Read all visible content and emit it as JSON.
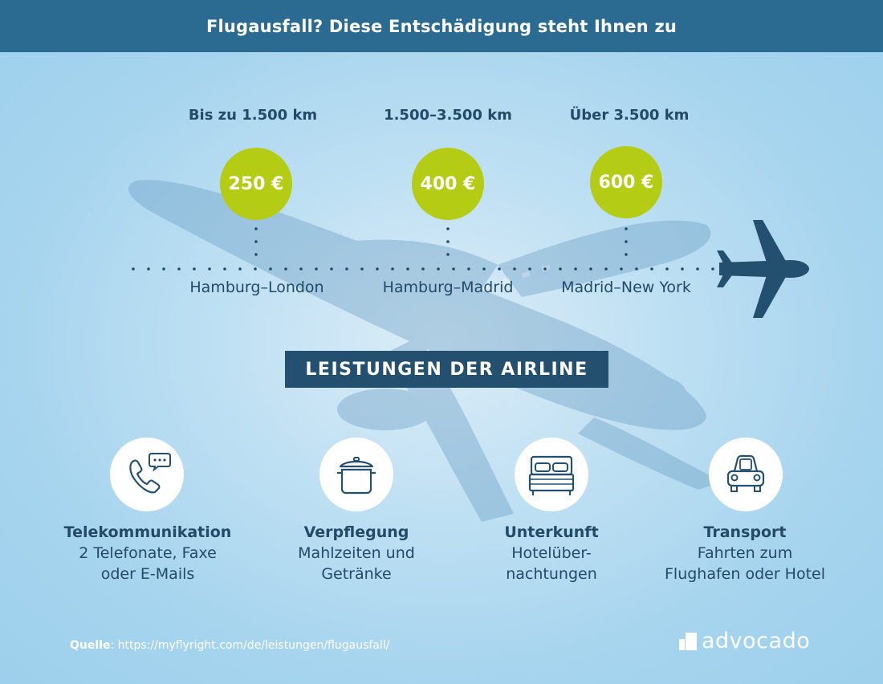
{
  "header": {
    "title": "Flugausfall? Diese Entschädigung steht Ihnen zu"
  },
  "tiers": [
    {
      "distance": "Bis zu 1.500 km",
      "amount": "250 €",
      "route": "Hamburg–London"
    },
    {
      "distance": "1.500–3.500 km",
      "amount": "400 €",
      "route": "Hamburg–Madrid"
    },
    {
      "distance": "Über 3.500 km",
      "amount": "600 €",
      "route": "Madrid–New York"
    }
  ],
  "section": {
    "title": "LEISTUNGEN DER AIRLINE"
  },
  "services": [
    {
      "icon": "phone-icon",
      "title": "Telekommunikation",
      "line1": "2 Telefonate, Faxe",
      "line2": "oder E-Mails"
    },
    {
      "icon": "cooking-pot-icon",
      "title": "Verpflegung",
      "line1": "Mahlzeiten und",
      "line2": "Getränke"
    },
    {
      "icon": "bed-icon",
      "title": "Unterkunft",
      "line1": "Hotelüber-",
      "line2": "nachtungen"
    },
    {
      "icon": "car-icon",
      "title": "Transport",
      "line1": "Fahrten zum",
      "line2": "Flughafen oder Hotel"
    }
  ],
  "source": {
    "label": "Quelle",
    "url": "https://myflyright.com/de/leistungen/flugausfall/"
  },
  "logo": {
    "text": "advocado"
  },
  "colors": {
    "header": "#2b6b91",
    "badge": "#b4cc13",
    "section": "#24506f",
    "text": "#234a66"
  }
}
